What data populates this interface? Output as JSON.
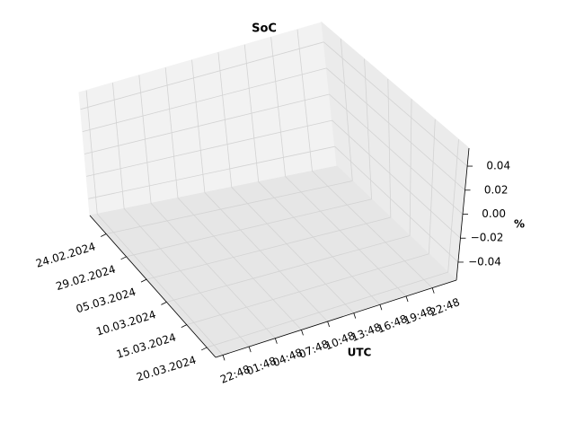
{
  "chart_data": {
    "type": "surface3d",
    "title": "SoC",
    "ylabel": "UTC",
    "zlabel": "%",
    "xticks": [
      "24.02.2024",
      "29.02.2024",
      "05.03.2024",
      "10.03.2024",
      "15.03.2024",
      "20.03.2024"
    ],
    "yticks": [
      "22:48",
      "01:48",
      "04:48",
      "07:48",
      "10:48",
      "13:48",
      "16:48",
      "19:48",
      "22:48"
    ],
    "zlim": [
      -0.055,
      0.055
    ],
    "zticks": [
      {
        "value": -0.04,
        "label": "−0.04"
      },
      {
        "value": -0.02,
        "label": "−0.02"
      },
      {
        "value": 0,
        "label": "0.00"
      },
      0.02,
      0.04
    ],
    "grid": true
  }
}
